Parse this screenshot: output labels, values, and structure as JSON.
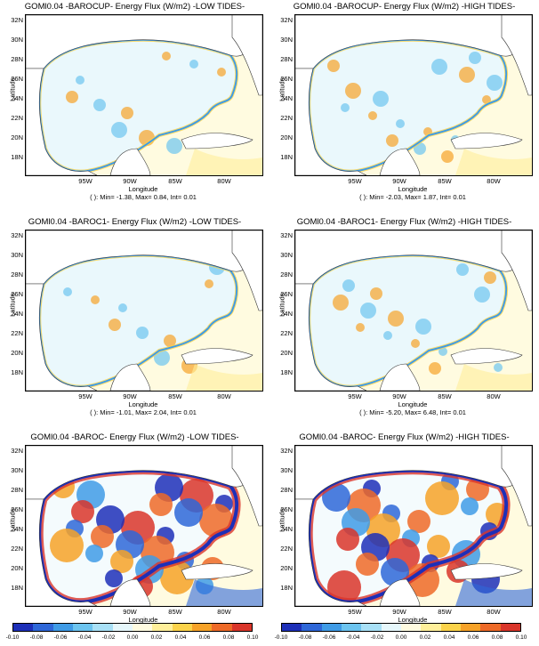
{
  "panels": [
    {
      "title": "GOMl0.04 -BAROCUP- Energy Flux (W/m2) -LOW TIDES-",
      "stats": "( ): Min= -1.38, Max= 0.84, Int= 0.01",
      "intensity": "low"
    },
    {
      "title": "GOMl0.04 -BAROCUP- Energy Flux (W/m2) -HIGH TIDES-",
      "stats": "( ): Min= -2.03, Max= 1.87, Int= 0.01",
      "intensity": "med"
    },
    {
      "title": "GOMl0.04 -BAROC1- Energy Flux (W/m2) -LOW TIDES-",
      "stats": "( ): Min= -1.01, Max= 2.04, Int= 0.01",
      "intensity": "low"
    },
    {
      "title": "GOMl0.04 -BAROC1- Energy Flux (W/m2) -HIGH TIDES-",
      "stats": "( ): Min= -5.20, Max= 6.48, Int= 0.01",
      "intensity": "med"
    },
    {
      "title": "GOMl0.04 -BAROC- Energy Flux (W/m2) -LOW TIDES-",
      "stats": "( ): Min= -7.03, Max= 8.24, Int= 0.01",
      "intensity": "high"
    },
    {
      "title": "GOMl0.04 -BAROC- Energy Flux (W/m2) -HIGH TIDES-",
      "stats": "( ): Min= -13.34, Max= 17.30, Int= 0.01",
      "intensity": "high"
    }
  ],
  "axes": {
    "ylabel": "Latitude",
    "xlabel": "Longitude",
    "yticks": [
      "32N",
      "30N",
      "28N",
      "26N",
      "24N",
      "22N",
      "20N",
      "18N"
    ],
    "xticks": [
      "95W",
      "90W",
      "85W",
      "80W"
    ]
  },
  "colorbar": {
    "labels": [
      "-0.10",
      "-0.08",
      "-0.06",
      "-0.04",
      "-0.02",
      "0.00",
      "0.02",
      "0.04",
      "0.06",
      "0.08",
      "0.10"
    ],
    "colors": [
      "#1d2fb8",
      "#2e67d8",
      "#3f9be6",
      "#6cc4ef",
      "#a8e0f6",
      "#e6f7fb",
      "#fffbe0",
      "#ffef9a",
      "#fbd34a",
      "#f6a228",
      "#ee6a28",
      "#d9352a"
    ]
  },
  "colors": {
    "land": "#ffffff",
    "background": "#fffbe0",
    "coast": "#333333"
  }
}
